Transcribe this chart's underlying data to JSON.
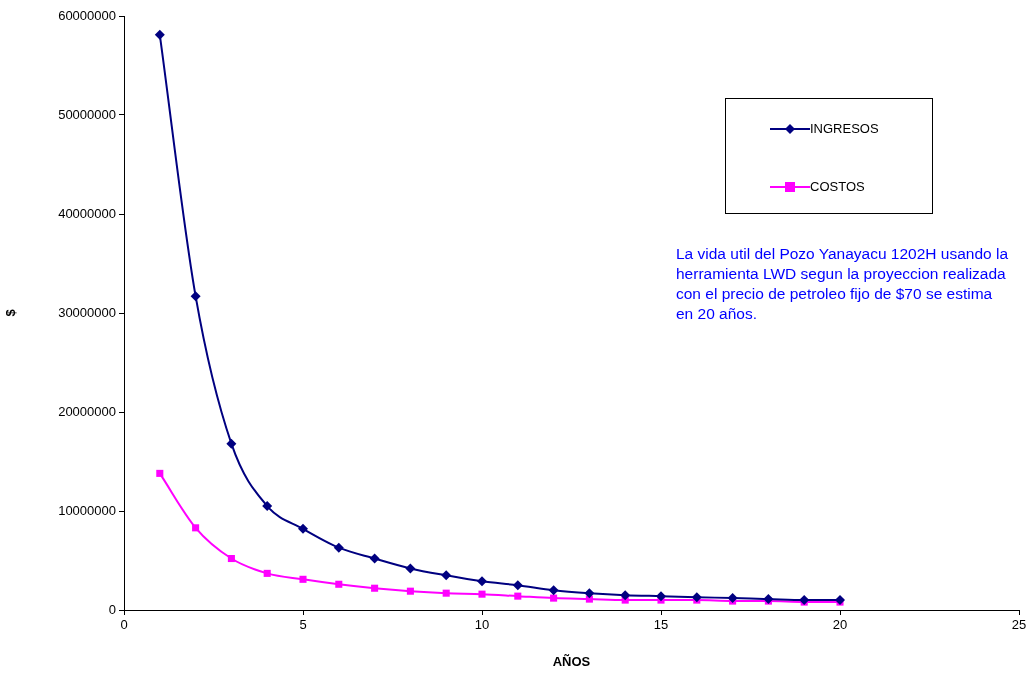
{
  "chart_data": {
    "type": "line",
    "xlabel": "AÑOS",
    "ylabel": "$",
    "x": [
      1,
      2,
      3,
      4,
      5,
      6,
      7,
      8,
      9,
      10,
      11,
      12,
      13,
      14,
      15,
      16,
      17,
      18,
      19,
      20
    ],
    "series": [
      {
        "name": "INGRESOS",
        "color": "#000080",
        "marker": "diamond",
        "values": [
          58100000,
          31700000,
          16800000,
          10500000,
          8200000,
          6300000,
          5200000,
          4200000,
          3500000,
          2900000,
          2500000,
          2000000,
          1700000,
          1500000,
          1400000,
          1300000,
          1200000,
          1100000,
          1000000,
          1000000
        ]
      },
      {
        "name": "COSTOS",
        "color": "#ff00ff",
        "marker": "square",
        "values": [
          13800000,
          8300000,
          5200000,
          3700000,
          3100000,
          2600000,
          2200000,
          1900000,
          1700000,
          1600000,
          1400000,
          1200000,
          1100000,
          1000000,
          1000000,
          1000000,
          900000,
          900000,
          800000,
          800000
        ]
      }
    ],
    "xlim": [
      0,
      25
    ],
    "xticks": [
      0,
      5,
      10,
      15,
      20,
      25
    ],
    "ylim": [
      0,
      60000000
    ],
    "yticks": [
      0,
      10000000,
      20000000,
      30000000,
      40000000,
      50000000,
      60000000
    ],
    "grid": false,
    "legend": "top right",
    "annotations": [
      "La vida util del Pozo Yanayacu 1202H usando la herramienta LWD segun la proyeccion realizada con el precio de petroleo fijo de $70 se estima en 20 años."
    ]
  }
}
